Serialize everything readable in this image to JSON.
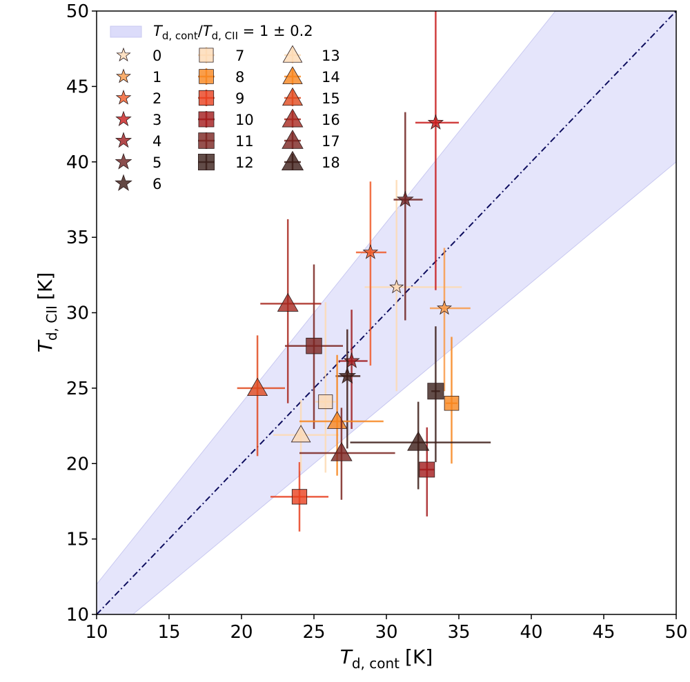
{
  "chart_data": {
    "type": "scatter",
    "title": "",
    "xlabel": {
      "symbol": "T",
      "sub": "d, cont",
      "unit": "[K]"
    },
    "ylabel": {
      "symbol": "T",
      "sub": "d, CII",
      "unit": "[K]"
    },
    "xlim": [
      10,
      50
    ],
    "ylim": [
      10,
      50
    ],
    "xticks": [
      "10",
      "15",
      "20",
      "25",
      "30",
      "35",
      "40",
      "45",
      "50"
    ],
    "yticks": [
      "10",
      "15",
      "20",
      "25",
      "30",
      "35",
      "40",
      "45",
      "50"
    ],
    "legend_position": "top-left",
    "reference": {
      "line": "y = x",
      "band_low_ratio": 0.8,
      "band_high_ratio": 1.2,
      "band_label": {
        "symbol": "T",
        "sub1": "d, cont",
        "slash": "/",
        "sub2": "d, CII",
        "rest": " = 1 ± 0.2"
      },
      "line_color": "#0d0d5e",
      "band_color": "#dcdcfa"
    },
    "points": [
      {
        "id": "0",
        "marker": "star",
        "color": "#fddab4",
        "x": 30.7,
        "y": 31.7,
        "xerr": [
          2.2,
          4.5
        ],
        "yerr": [
          6.9,
          7.1
        ]
      },
      {
        "id": "1",
        "marker": "star",
        "color": "#f99a48",
        "x": 34.0,
        "y": 30.3,
        "xerr": [
          1.0,
          1.8
        ],
        "yerr": [
          5.5,
          4.0
        ]
      },
      {
        "id": "2",
        "marker": "star",
        "color": "#f05a28",
        "x": 28.9,
        "y": 34.0,
        "xerr": [
          1.0,
          1.1
        ],
        "yerr": [
          7.5,
          4.7
        ]
      },
      {
        "id": "3",
        "marker": "star",
        "color": "#c81d1d",
        "x": 33.4,
        "y": 42.6,
        "xerr": [
          1.4,
          1.6
        ],
        "yerr": [
          11.1,
          7.8
        ]
      },
      {
        "id": "4",
        "marker": "star",
        "color": "#9f1c1e",
        "x": 27.6,
        "y": 26.8,
        "xerr": [
          0.9,
          1.1
        ],
        "yerr": [
          4.5,
          3.4
        ]
      },
      {
        "id": "5",
        "marker": "star",
        "color": "#6e2220",
        "x": 31.3,
        "y": 37.5,
        "xerr": [
          0.8,
          1.2
        ],
        "yerr": [
          8.0,
          5.8
        ]
      },
      {
        "id": "6",
        "marker": "star",
        "color": "#3d1a14",
        "x": 27.3,
        "y": 25.8,
        "xerr": [
          0.8,
          0.9
        ],
        "yerr": [
          4.8,
          3.1
        ]
      },
      {
        "id": "7",
        "marker": "square",
        "color": "#fddab4",
        "x": 25.8,
        "y": 24.1,
        "xerr": [
          0.7,
          0.7
        ],
        "yerr": [
          4.7,
          6.6
        ]
      },
      {
        "id": "8",
        "marker": "square",
        "color": "#f7861e",
        "x": 34.5,
        "y": 24.0,
        "xerr": [
          0.4,
          0.4
        ],
        "yerr": [
          4.0,
          4.4
        ]
      },
      {
        "id": "9",
        "marker": "square",
        "color": "#e8401e",
        "x": 24.0,
        "y": 17.8,
        "xerr": [
          2.0,
          2.0
        ],
        "yerr": [
          2.3,
          2.3
        ]
      },
      {
        "id": "10",
        "marker": "square",
        "color": "#a31a1c",
        "x": 32.8,
        "y": 19.6,
        "xerr": [
          0.5,
          0.5
        ],
        "yerr": [
          3.1,
          2.8
        ]
      },
      {
        "id": "11",
        "marker": "square",
        "color": "#7a2420",
        "x": 25.0,
        "y": 27.8,
        "xerr": [
          2.0,
          2.0
        ],
        "yerr": [
          5.5,
          5.4
        ]
      },
      {
        "id": "12",
        "marker": "square",
        "color": "#3b1f1a",
        "x": 33.4,
        "y": 24.8,
        "xerr": [
          0.3,
          0.3
        ],
        "yerr": [
          4.7,
          4.3
        ]
      },
      {
        "id": "13",
        "marker": "triangle",
        "color": "#fddab4",
        "x": 24.1,
        "y": 21.9,
        "xerr": [
          1.9,
          2.6
        ],
        "yerr": [
          2.4,
          2.3
        ]
      },
      {
        "id": "14",
        "marker": "triangle",
        "color": "#f7861e",
        "x": 26.6,
        "y": 22.8,
        "xerr": [
          2.6,
          3.2
        ],
        "yerr": [
          3.6,
          4.4
        ]
      },
      {
        "id": "15",
        "marker": "triangle",
        "color": "#e04a1e",
        "x": 21.1,
        "y": 25.0,
        "xerr": [
          1.4,
          1.9
        ],
        "yerr": [
          4.5,
          3.5
        ]
      },
      {
        "id": "16",
        "marker": "triangle",
        "color": "#a8281f",
        "x": 23.2,
        "y": 30.6,
        "xerr": [
          1.9,
          2.3
        ],
        "yerr": [
          6.6,
          5.6
        ]
      },
      {
        "id": "17",
        "marker": "triangle",
        "color": "#7a2420",
        "x": 26.9,
        "y": 20.7,
        "xerr": [
          2.9,
          3.7
        ],
        "yerr": [
          3.1,
          3.0
        ]
      },
      {
        "id": "18",
        "marker": "triangle",
        "color": "#3d1d18",
        "x": 32.2,
        "y": 21.4,
        "xerr": [
          4.7,
          5.0
        ],
        "yerr": [
          3.1,
          2.7
        ]
      }
    ]
  }
}
